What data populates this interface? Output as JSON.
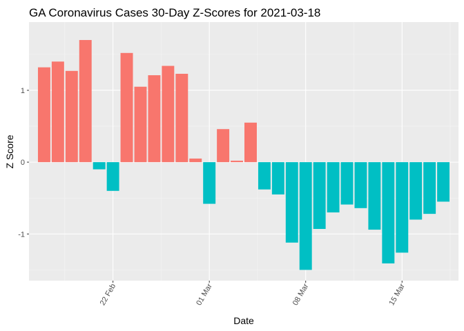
{
  "chart_data": {
    "type": "bar",
    "title": "GA Coronavirus Cases 30-Day Z-Scores for 2021-03-18",
    "xlabel": "Date",
    "ylabel": "Z Score",
    "ylim": [
      -1.65,
      1.95
    ],
    "y_ticks": [
      -1,
      0,
      1
    ],
    "x_ticks": [
      {
        "label": "22 Feb",
        "date": "2021-02-22"
      },
      {
        "label": "01 Mar",
        "date": "2021-03-01"
      },
      {
        "label": "08 Mar",
        "date": "2021-03-08"
      },
      {
        "label": "15 Mar",
        "date": "2021-03-15"
      }
    ],
    "start_date": "2021-02-17",
    "fill_colors": {
      "positive": "#F8766D",
      "negative": "#00BFC4"
    },
    "panel_background": "#EBEBEB",
    "grid": true,
    "legend": "none",
    "dates": [
      "2021-02-17",
      "2021-02-18",
      "2021-02-19",
      "2021-02-20",
      "2021-02-21",
      "2021-02-22",
      "2021-02-23",
      "2021-02-24",
      "2021-02-25",
      "2021-02-26",
      "2021-02-27",
      "2021-02-28",
      "2021-03-01",
      "2021-03-02",
      "2021-03-03",
      "2021-03-04",
      "2021-03-05",
      "2021-03-06",
      "2021-03-07",
      "2021-03-08",
      "2021-03-09",
      "2021-03-10",
      "2021-03-11",
      "2021-03-12",
      "2021-03-13",
      "2021-03-14",
      "2021-03-15",
      "2021-03-16",
      "2021-03-17",
      "2021-03-18"
    ],
    "values": [
      1.32,
      1.4,
      1.27,
      1.7,
      -0.1,
      -0.4,
      1.52,
      1.05,
      1.21,
      1.34,
      1.23,
      0.05,
      -0.58,
      0.46,
      0.02,
      0.55,
      -0.38,
      -0.45,
      -1.12,
      -1.5,
      -0.93,
      -0.7,
      -0.59,
      -0.64,
      -0.94,
      -1.41,
      -1.26,
      -0.8,
      -0.72,
      -0.55
    ]
  }
}
